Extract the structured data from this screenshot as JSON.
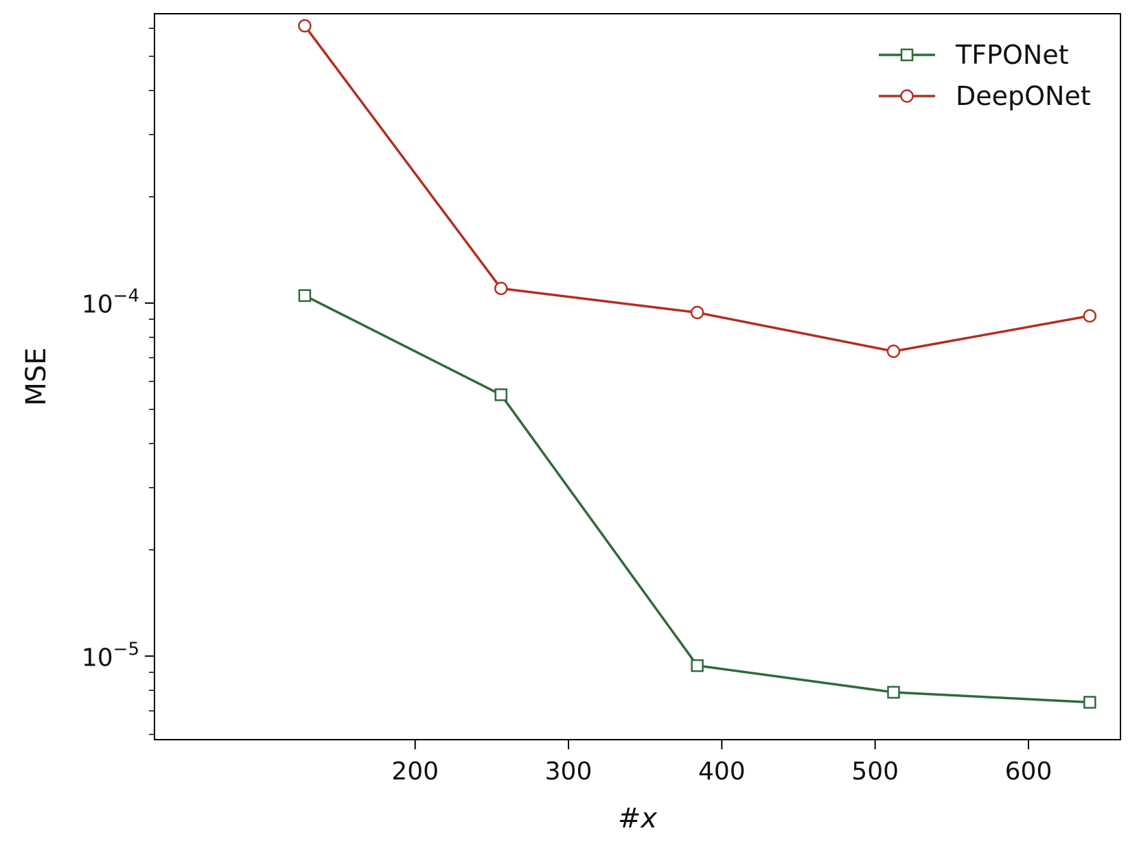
{
  "chart_data": {
    "type": "line",
    "title": "",
    "xlabel": "#x",
    "ylabel": "MSE",
    "y_scale": "log",
    "grid": false,
    "legend_position": "top-right",
    "x": [
      128,
      256,
      384,
      512,
      640
    ],
    "xlim": [
      30,
      660
    ],
    "ylim": [
      5.8e-06,
      0.00066
    ],
    "x_ticks": [
      200,
      300,
      400,
      500,
      600
    ],
    "x_tick_labels": [
      "200",
      "300",
      "400",
      "500",
      "600"
    ],
    "y_major_ticks": [
      1e-05,
      0.0001
    ],
    "y_tick_labels": [
      {
        "base": "10",
        "exp": "−5"
      },
      {
        "base": "10",
        "exp": "−4"
      }
    ],
    "series": [
      {
        "name": "TFPONet",
        "color": "#2e6b3a",
        "marker": "square",
        "values": [
          0.000105,
          5.5e-05,
          9.4e-06,
          7.9e-06,
          7.4e-06
        ]
      },
      {
        "name": "DeepONet",
        "color": "#b03020",
        "marker": "circle",
        "values": [
          0.00061,
          0.00011,
          9.4e-05,
          7.3e-05,
          9.2e-05
        ]
      }
    ]
  }
}
